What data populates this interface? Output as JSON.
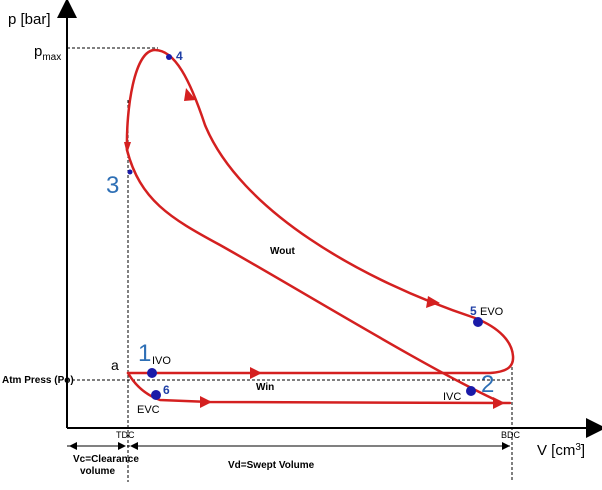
{
  "axes": {
    "y_label": "p [bar]",
    "x_label_prefix": "V [cm",
    "x_label_sup": "3",
    "x_label_suffix": "]",
    "pmax_base": "p",
    "pmax_sub": "max",
    "atm_label": "Atm Press (Po)",
    "a_label": "a",
    "tdc_label": "TDC",
    "bdc_label": "BDC"
  },
  "points": {
    "p1": "1",
    "p2": "2",
    "p3": "3",
    "p4": "4",
    "p5": "5",
    "p6": "6"
  },
  "valve_events": {
    "ivo": "IVO",
    "ivc": "IVC",
    "evo": "EVO",
    "evc": "EVC"
  },
  "work": {
    "wout": "Wout",
    "win": "Win"
  },
  "volumes": {
    "clearance_line1": "Vc=Clearance",
    "clearance_line2": "volume",
    "swept": "Vd=Swept Volume"
  },
  "colors": {
    "cycle": "#d42020",
    "points": "#1a1aa8",
    "big_numbers": "#2e6fb5",
    "axes": "#000000"
  }
}
